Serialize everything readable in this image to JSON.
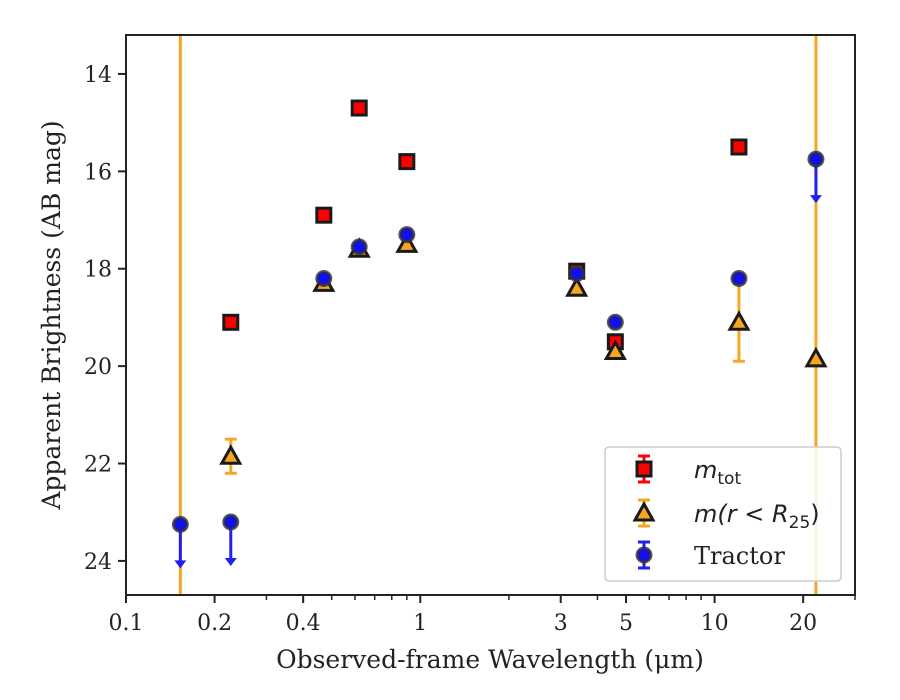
{
  "chart_data": {
    "type": "scatter",
    "title": "",
    "xlabel": "Observed-frame Wavelength (μm)",
    "ylabel": "Apparent Brightness (AB mag)",
    "xscale": "log",
    "xlim": [
      0.1,
      30
    ],
    "ylim": [
      24.7,
      13.2
    ],
    "y_inverted": true,
    "grid": false,
    "xticks": [
      {
        "value": 0.1,
        "label": "0.1"
      },
      {
        "value": 0.2,
        "label": "0.2"
      },
      {
        "value": 0.4,
        "label": "0.4"
      },
      {
        "value": 1,
        "label": "1"
      },
      {
        "value": 3,
        "label": "3"
      },
      {
        "value": 5,
        "label": "5"
      },
      {
        "value": 10,
        "label": "10"
      },
      {
        "value": 20,
        "label": "20"
      }
    ],
    "yticks": [
      {
        "value": 14,
        "label": "14"
      },
      {
        "value": 16,
        "label": "16"
      },
      {
        "value": 18,
        "label": "18"
      },
      {
        "value": 20,
        "label": "20"
      },
      {
        "value": 22,
        "label": "22"
      },
      {
        "value": 24,
        "label": "24"
      }
    ],
    "vlines": [
      {
        "x": 0.153,
        "color": "#f5a623"
      },
      {
        "x": 22.1,
        "color": "#f5a623"
      }
    ],
    "legend_position": "bottom-right",
    "series": [
      {
        "name": "m_tot",
        "legend_main": "m",
        "legend_sub": "tot",
        "marker": "square",
        "color": "#ff0000",
        "edge_color": "#1a1a1a",
        "error_color": "#ff0000",
        "points": [
          {
            "x": 0.227,
            "y": 19.1
          },
          {
            "x": 0.47,
            "y": 16.9
          },
          {
            "x": 0.62,
            "y": 14.7
          },
          {
            "x": 0.9,
            "y": 15.8
          },
          {
            "x": 3.4,
            "y": 18.05
          },
          {
            "x": 4.6,
            "y": 19.5
          },
          {
            "x": 12.1,
            "y": 15.5
          }
        ]
      },
      {
        "name": "m(r<R_25)",
        "legend_main": "m(r < R",
        "legend_sub": "25",
        "legend_tail": ")",
        "marker": "triangle",
        "color": "#f5a623",
        "edge_color": "#1a1a1a",
        "error_color": "#f5a623",
        "points": [
          {
            "x": 0.227,
            "y": 21.85,
            "err_low": 0.35,
            "err_high": 0.35
          },
          {
            "x": 0.47,
            "y": 18.3
          },
          {
            "x": 0.62,
            "y": 17.6
          },
          {
            "x": 0.9,
            "y": 17.5
          },
          {
            "x": 3.4,
            "y": 18.4
          },
          {
            "x": 4.6,
            "y": 19.7
          },
          {
            "x": 12.1,
            "y": 19.1,
            "err_low": 0.8,
            "err_high": 0.8
          },
          {
            "x": 22.1,
            "y": 19.85
          }
        ]
      },
      {
        "name": "Tractor",
        "legend_main": "Tractor",
        "marker": "circle",
        "color": "#1010ee",
        "edge_color": "#333333",
        "error_color": "#2020f0",
        "points": [
          {
            "x": 0.153,
            "y": 23.25,
            "upper_limit": true
          },
          {
            "x": 0.227,
            "y": 23.2,
            "upper_limit": true
          },
          {
            "x": 0.47,
            "y": 18.2
          },
          {
            "x": 0.62,
            "y": 17.55
          },
          {
            "x": 0.9,
            "y": 17.3
          },
          {
            "x": 3.4,
            "y": 18.1
          },
          {
            "x": 4.6,
            "y": 19.1
          },
          {
            "x": 12.1,
            "y": 18.2
          },
          {
            "x": 22.1,
            "y": 15.75,
            "upper_limit": true
          }
        ]
      }
    ]
  }
}
